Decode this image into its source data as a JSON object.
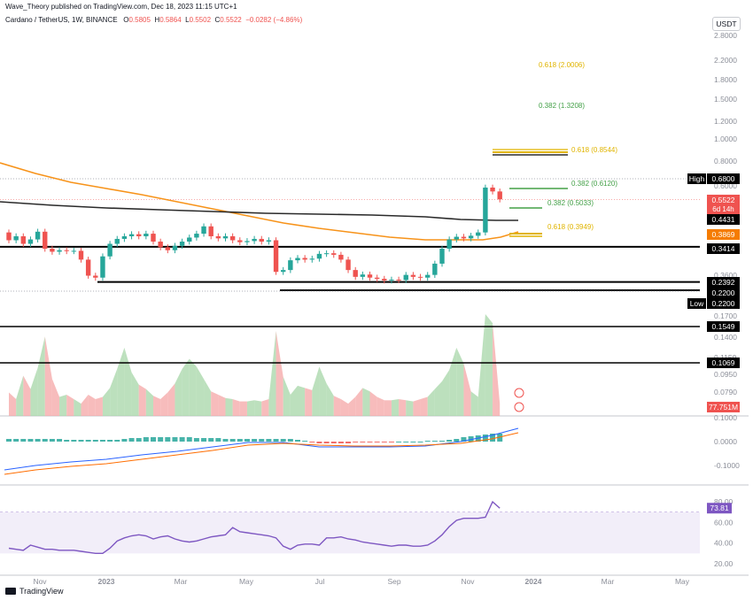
{
  "header": {
    "published_by": "Wave_Theory published on TradingView.com, Dec 18, 2023 11:15 UTC+1"
  },
  "symbol": {
    "pair": "Cardano / TetherUS, 1W, BINANCE",
    "o_label": "O",
    "o": "0.5805",
    "h_label": "H",
    "h": "0.5864",
    "l_label": "L",
    "l": "0.5502",
    "c_label": "C",
    "c": "0.5522",
    "change": "−0.0282 (−4.86%)"
  },
  "toolbar": {
    "currency_button": "USDT"
  },
  "footer": {
    "logo_text": "TradingView"
  },
  "colors": {
    "up": "#26a69a",
    "down": "#ef5350",
    "ema_orange": "#f7931a",
    "ema_black": "#2a2a2a",
    "fib_green": "#43a047",
    "fib_gold": "#e0b400",
    "rsi": "#7e57c2"
  },
  "chart_data": [
    {
      "type": "candlestick",
      "title": "",
      "price_axis_ticks": [
        "2.8000",
        "2.2000",
        "1.8000",
        "1.5000",
        "1.2000",
        "1.0000",
        "0.8000",
        "0.6000",
        "0.5000",
        "0.3600",
        "0.2800",
        "0.1700",
        "0.1400",
        "0.1150",
        "0.0950",
        "0.0790"
      ],
      "x_axis_ticks": [
        "Nov",
        "2023",
        "Mar",
        "May",
        "Jul",
        "Sep",
        "Nov",
        "2024",
        "Mar",
        "May"
      ],
      "price_labels": [
        {
          "text": "High",
          "value": "0.6800",
          "style": "black"
        },
        {
          "text": "",
          "value": "0.5522",
          "sub": "6d 14h",
          "style": "red"
        },
        {
          "text": "",
          "value": "0.4431",
          "style": "black"
        },
        {
          "text": "",
          "value": "0.3869",
          "style": "orange"
        },
        {
          "text": "",
          "value": "0.3414",
          "style": "black"
        },
        {
          "text": "",
          "value": "0.2392",
          "style": "black"
        },
        {
          "text": "",
          "value": "0.2200",
          "style": "black"
        },
        {
          "text": "Low",
          "value": "0.2200",
          "style": "black"
        },
        {
          "text": "",
          "value": "0.1549",
          "style": "black"
        },
        {
          "text": "",
          "value": "0.1069",
          "style": "black"
        },
        {
          "text": "",
          "value": "77.751M",
          "style": "red"
        }
      ],
      "fib_levels": [
        {
          "label": "0.618 (2.0006)",
          "color": "gold"
        },
        {
          "label": "0.382 (1.3208)",
          "color": "green"
        },
        {
          "label": "0.618 (0.8544)",
          "color": "gold"
        },
        {
          "label": "0.382 (0.6120)",
          "color": "green"
        },
        {
          "label": "0.382 (0.5033)",
          "color": "green"
        },
        {
          "label": "0.618 (0.3949)",
          "color": "gold"
        }
      ],
      "candles": [
        {
          "o": 0.395,
          "c": 0.365
        },
        {
          "o": 0.365,
          "c": 0.38
        },
        {
          "o": 0.38,
          "c": 0.352
        },
        {
          "o": 0.352,
          "c": 0.368
        },
        {
          "o": 0.368,
          "c": 0.398
        },
        {
          "o": 0.398,
          "c": 0.335
        },
        {
          "o": 0.335,
          "c": 0.325
        },
        {
          "o": 0.325,
          "c": 0.33
        },
        {
          "o": 0.33,
          "c": 0.327
        },
        {
          "o": 0.327,
          "c": 0.328
        },
        {
          "o": 0.328,
          "c": 0.3
        },
        {
          "o": 0.3,
          "c": 0.255
        },
        {
          "o": 0.255,
          "c": 0.25
        },
        {
          "o": 0.25,
          "c": 0.31
        },
        {
          "o": 0.31,
          "c": 0.352
        },
        {
          "o": 0.352,
          "c": 0.37
        },
        {
          "o": 0.37,
          "c": 0.38
        },
        {
          "o": 0.38,
          "c": 0.388
        },
        {
          "o": 0.388,
          "c": 0.38
        },
        {
          "o": 0.38,
          "c": 0.39
        },
        {
          "o": 0.39,
          "c": 0.36
        },
        {
          "o": 0.36,
          "c": 0.34
        },
        {
          "o": 0.34,
          "c": 0.33
        },
        {
          "o": 0.33,
          "c": 0.345
        },
        {
          "o": 0.345,
          "c": 0.36
        },
        {
          "o": 0.36,
          "c": 0.375
        },
        {
          "o": 0.375,
          "c": 0.39
        },
        {
          "o": 0.39,
          "c": 0.42
        },
        {
          "o": 0.42,
          "c": 0.38
        },
        {
          "o": 0.38,
          "c": 0.372
        },
        {
          "o": 0.372,
          "c": 0.38
        },
        {
          "o": 0.38,
          "c": 0.365
        },
        {
          "o": 0.365,
          "c": 0.358
        },
        {
          "o": 0.358,
          "c": 0.362
        },
        {
          "o": 0.362,
          "c": 0.37
        },
        {
          "o": 0.37,
          "c": 0.36
        },
        {
          "o": 0.36,
          "c": 0.365
        },
        {
          "o": 0.365,
          "c": 0.265
        },
        {
          "o": 0.265,
          "c": 0.27
        },
        {
          "o": 0.27,
          "c": 0.298
        },
        {
          "o": 0.298,
          "c": 0.305
        },
        {
          "o": 0.305,
          "c": 0.3
        },
        {
          "o": 0.3,
          "c": 0.303
        },
        {
          "o": 0.303,
          "c": 0.318
        },
        {
          "o": 0.318,
          "c": 0.32
        },
        {
          "o": 0.32,
          "c": 0.315
        },
        {
          "o": 0.315,
          "c": 0.3
        },
        {
          "o": 0.3,
          "c": 0.27
        },
        {
          "o": 0.27,
          "c": 0.252
        },
        {
          "o": 0.252,
          "c": 0.258
        },
        {
          "o": 0.258,
          "c": 0.25
        },
        {
          "o": 0.25,
          "c": 0.247
        },
        {
          "o": 0.247,
          "c": 0.243
        },
        {
          "o": 0.243,
          "c": 0.245
        },
        {
          "o": 0.245,
          "c": 0.244
        },
        {
          "o": 0.244,
          "c": 0.257
        },
        {
          "o": 0.257,
          "c": 0.252
        },
        {
          "o": 0.252,
          "c": 0.25
        },
        {
          "o": 0.25,
          "c": 0.257
        },
        {
          "o": 0.257,
          "c": 0.288
        },
        {
          "o": 0.288,
          "c": 0.335
        },
        {
          "o": 0.335,
          "c": 0.368
        },
        {
          "o": 0.368,
          "c": 0.378
        },
        {
          "o": 0.378,
          "c": 0.372
        },
        {
          "o": 0.372,
          "c": 0.382
        },
        {
          "o": 0.382,
          "c": 0.395
        },
        {
          "o": 0.395,
          "c": 0.622
        },
        {
          "o": 0.622,
          "c": 0.598
        },
        {
          "o": 0.598,
          "c": 0.552
        }
      ]
    },
    {
      "type": "area",
      "title": "",
      "values": [
        0.1,
        0.094,
        0.115,
        0.103,
        0.122,
        0.15,
        0.112,
        0.096,
        0.098,
        0.094,
        0.09,
        0.098,
        0.094,
        0.096,
        0.104,
        0.121,
        0.14,
        0.118,
        0.107,
        0.103,
        0.097,
        0.094,
        0.1,
        0.108,
        0.121,
        0.13,
        0.123,
        0.112,
        0.101,
        0.098,
        0.095,
        0.094,
        0.092,
        0.092,
        0.093,
        0.092,
        0.094,
        0.155,
        0.114,
        0.098,
        0.106,
        0.104,
        0.102,
        0.123,
        0.108,
        0.097,
        0.094,
        0.09,
        0.096,
        0.104,
        0.101,
        0.096,
        0.093,
        0.093,
        0.094,
        0.093,
        0.092,
        0.094,
        0.096,
        0.103,
        0.11,
        0.12,
        0.14,
        0.126,
        0.101,
        0.096,
        0.17,
        0.162,
        0.09
      ]
    },
    {
      "type": "macd",
      "title": "",
      "y_ticks": [
        "0.1000",
        "0.0000",
        "-0.1000"
      ]
    },
    {
      "type": "line",
      "title": "",
      "y_ticks": [
        "80.00",
        "60.00",
        "40.00",
        "20.00"
      ],
      "value_label": "73.81",
      "values": [
        35,
        34,
        33,
        38,
        36,
        34,
        34,
        33,
        33,
        33,
        32,
        31,
        30,
        30,
        35,
        42,
        45,
        47,
        48,
        47,
        44,
        46,
        47,
        44,
        42,
        41,
        42,
        44,
        46,
        47,
        48,
        55,
        51,
        50,
        49,
        48,
        47,
        45,
        37,
        34,
        38,
        39,
        39,
        38,
        45,
        45,
        46,
        44,
        43,
        41,
        40,
        39,
        38,
        37,
        38,
        38,
        37,
        37,
        38,
        42,
        48,
        56,
        62,
        64,
        64,
        64,
        65,
        80,
        73.8
      ]
    }
  ]
}
